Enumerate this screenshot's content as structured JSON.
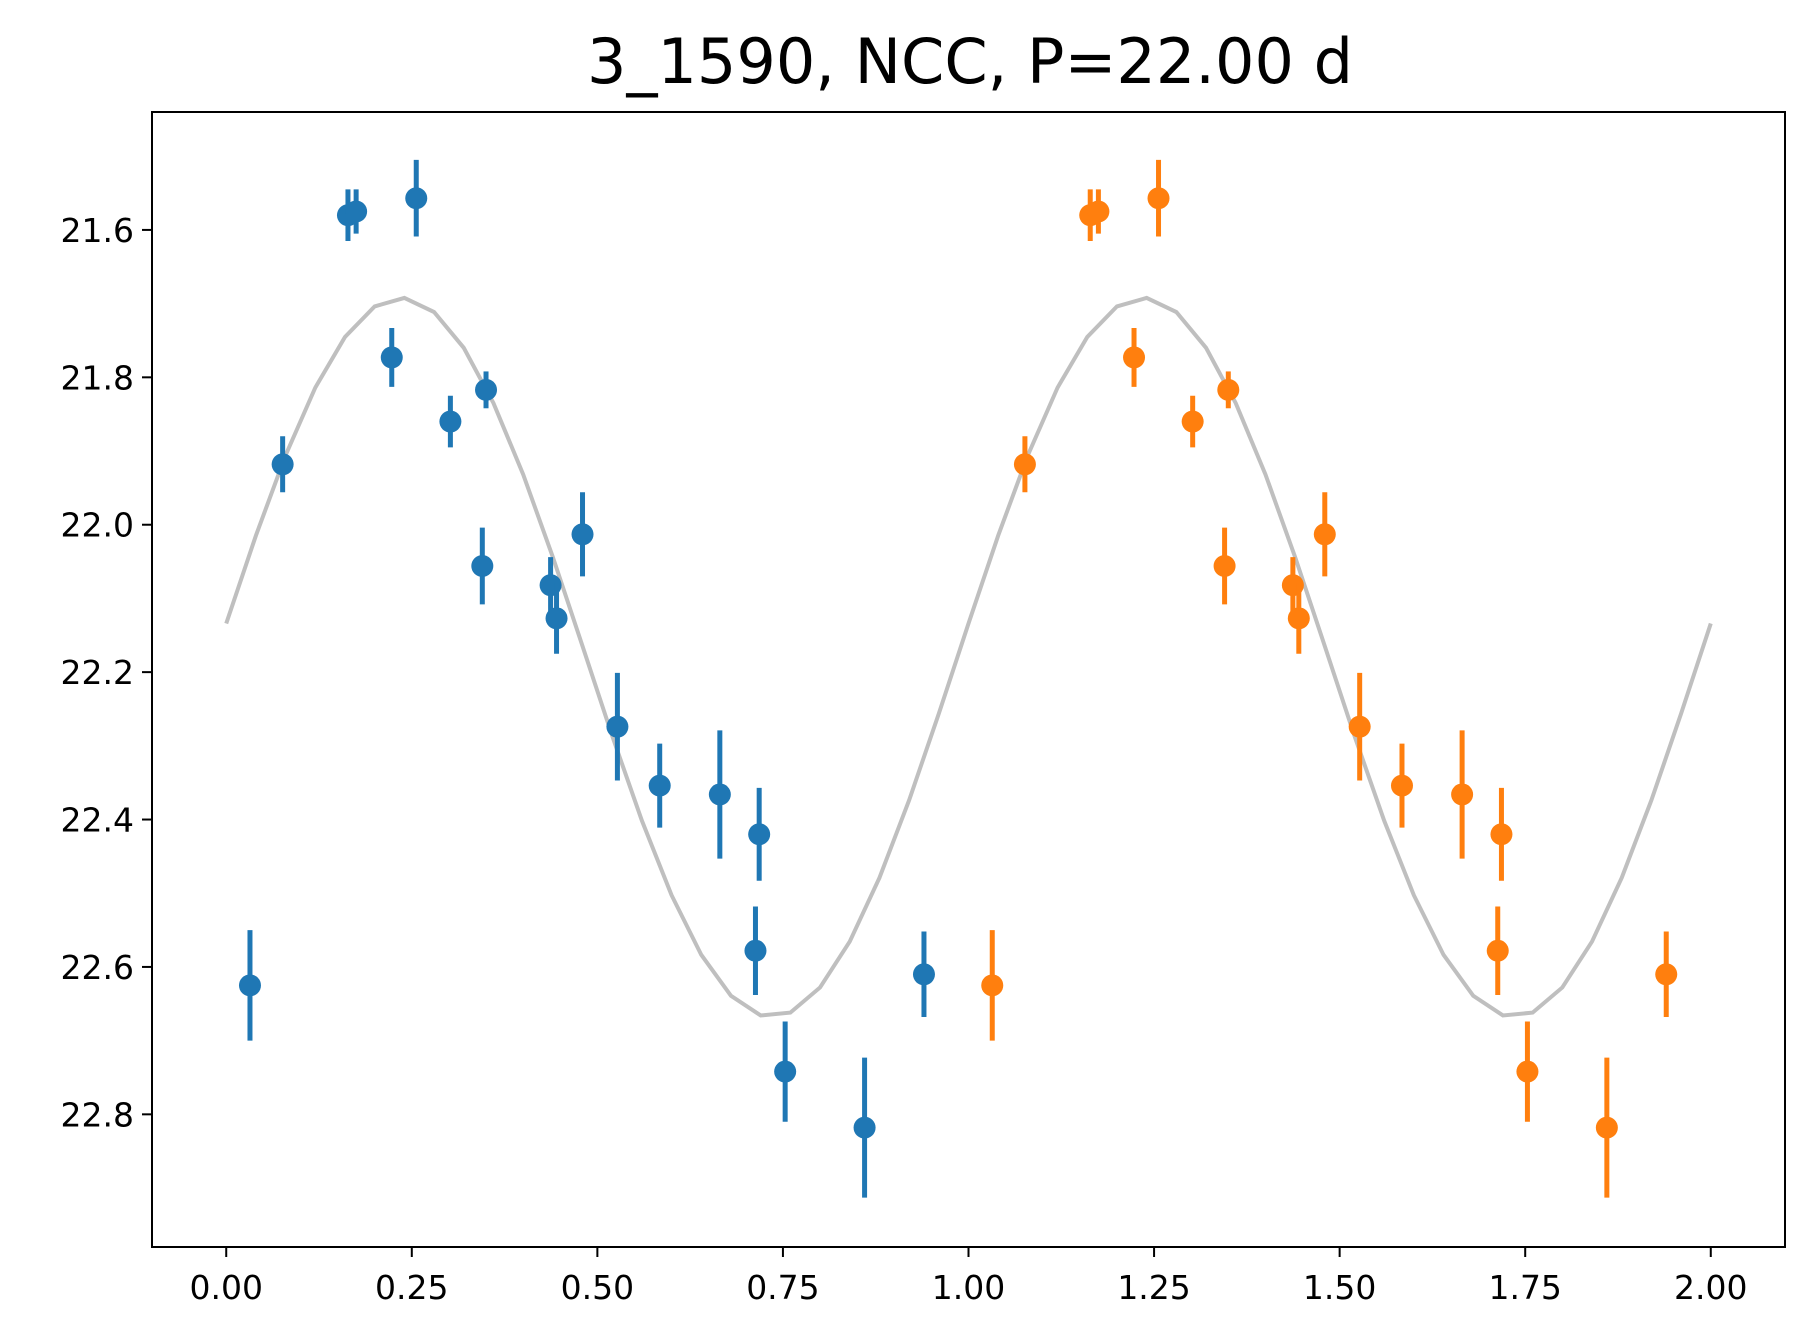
{
  "chart_data": {
    "type": "scatter",
    "title": "3_1590, NCC, P=22.00 d",
    "xlabel": "",
    "ylabel": "",
    "xlim": [
      -0.1,
      2.1
    ],
    "ylim": [
      22.98,
      21.44
    ],
    "y_inverted": true,
    "grid": false,
    "legend": "none",
    "x_ticks": [
      "0.00",
      "0.25",
      "0.50",
      "0.75",
      "1.00",
      "1.25",
      "1.50",
      "1.75",
      "2.00"
    ],
    "y_ticks": [
      "21.6",
      "21.8",
      "22.0",
      "22.2",
      "22.4",
      "22.6",
      "22.8"
    ],
    "series": [
      {
        "color": "#1f77b4",
        "points": [
          {
            "x": 0.032,
            "y": 22.625,
            "err": 0.075
          },
          {
            "x": 0.076,
            "y": 21.918,
            "err": 0.038
          },
          {
            "x": 0.164,
            "y": 21.58,
            "err": 0.035
          },
          {
            "x": 0.175,
            "y": 21.575,
            "err": 0.03
          },
          {
            "x": 0.256,
            "y": 21.557,
            "err": 0.052
          },
          {
            "x": 0.223,
            "y": 21.773,
            "err": 0.04
          },
          {
            "x": 0.302,
            "y": 21.86,
            "err": 0.035
          },
          {
            "x": 0.35,
            "y": 21.817,
            "err": 0.025
          },
          {
            "x": 0.345,
            "y": 22.056,
            "err": 0.052
          },
          {
            "x": 0.437,
            "y": 22.082,
            "err": 0.038
          },
          {
            "x": 0.445,
            "y": 22.127,
            "err": 0.048
          },
          {
            "x": 0.48,
            "y": 22.013,
            "err": 0.057
          },
          {
            "x": 0.527,
            "y": 22.274,
            "err": 0.073
          },
          {
            "x": 0.584,
            "y": 22.354,
            "err": 0.057
          },
          {
            "x": 0.665,
            "y": 22.366,
            "err": 0.087
          },
          {
            "x": 0.718,
            "y": 22.42,
            "err": 0.063
          },
          {
            "x": 0.713,
            "y": 22.578,
            "err": 0.06
          },
          {
            "x": 0.753,
            "y": 22.742,
            "err": 0.068
          },
          {
            "x": 0.86,
            "y": 22.818,
            "err": 0.095
          },
          {
            "x": 0.94,
            "y": 22.61,
            "err": 0.058
          }
        ]
      },
      {
        "color": "#ff7f0e",
        "points": [
          {
            "x": 1.032,
            "y": 22.625,
            "err": 0.075
          },
          {
            "x": 1.076,
            "y": 21.918,
            "err": 0.038
          },
          {
            "x": 1.164,
            "y": 21.58,
            "err": 0.035
          },
          {
            "x": 1.175,
            "y": 21.575,
            "err": 0.03
          },
          {
            "x": 1.256,
            "y": 21.557,
            "err": 0.052
          },
          {
            "x": 1.223,
            "y": 21.773,
            "err": 0.04
          },
          {
            "x": 1.302,
            "y": 21.86,
            "err": 0.035
          },
          {
            "x": 1.35,
            "y": 21.817,
            "err": 0.025
          },
          {
            "x": 1.345,
            "y": 22.056,
            "err": 0.052
          },
          {
            "x": 1.437,
            "y": 22.082,
            "err": 0.038
          },
          {
            "x": 1.445,
            "y": 22.127,
            "err": 0.048
          },
          {
            "x": 1.48,
            "y": 22.013,
            "err": 0.057
          },
          {
            "x": 1.527,
            "y": 22.274,
            "err": 0.073
          },
          {
            "x": 1.584,
            "y": 22.354,
            "err": 0.057
          },
          {
            "x": 1.665,
            "y": 22.366,
            "err": 0.087
          },
          {
            "x": 1.718,
            "y": 22.42,
            "err": 0.063
          },
          {
            "x": 1.713,
            "y": 22.578,
            "err": 0.06
          },
          {
            "x": 1.753,
            "y": 22.742,
            "err": 0.068
          },
          {
            "x": 1.86,
            "y": 22.818,
            "err": 0.095
          },
          {
            "x": 1.94,
            "y": 22.61,
            "err": 0.058
          }
        ]
      }
    ],
    "model": {
      "color": "#bfbfbf",
      "type": "sinusoid",
      "mean": 22.18,
      "amplitude": 0.488,
      "peak_phase": 0.235,
      "period_phase": 1.0,
      "x_range": [
        0.0,
        2.0
      ],
      "samples": 51
    }
  }
}
